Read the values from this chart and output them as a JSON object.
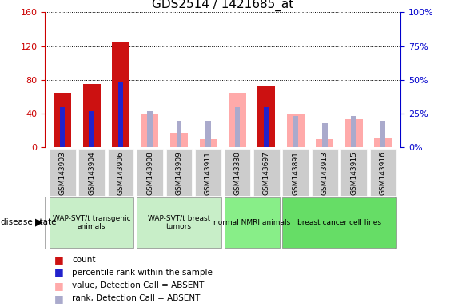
{
  "title": "GDS2514 / 1421685_at",
  "samples": [
    "GSM143903",
    "GSM143904",
    "GSM143906",
    "GSM143908",
    "GSM143909",
    "GSM143911",
    "GSM143330",
    "GSM143697",
    "GSM143891",
    "GSM143913",
    "GSM143915",
    "GSM143916"
  ],
  "count_values": [
    65,
    75,
    125,
    0,
    0,
    0,
    0,
    73,
    0,
    0,
    0,
    0
  ],
  "percentile_values": [
    30,
    27,
    48,
    0,
    0,
    0,
    0,
    30,
    0,
    0,
    0,
    0
  ],
  "absent_value_values": [
    0,
    0,
    0,
    40,
    17,
    10,
    65,
    0,
    40,
    10,
    33,
    12
  ],
  "absent_rank_values": [
    0,
    0,
    0,
    27,
    20,
    20,
    30,
    0,
    23,
    18,
    23,
    20
  ],
  "groups": [
    {
      "label": "WAP-SVT/t transgenic\nanimals",
      "start": 0,
      "end": 2,
      "color": "#c8eec8"
    },
    {
      "label": "WAP-SVT/t breast\ntumors",
      "start": 3,
      "end": 5,
      "color": "#c8eec8"
    },
    {
      "label": "normal NMRI animals",
      "start": 6,
      "end": 7,
      "color": "#88ee88"
    },
    {
      "label": "breast cancer cell lines",
      "start": 8,
      "end": 11,
      "color": "#66dd66"
    }
  ],
  "left_ylim": [
    0,
    160
  ],
  "right_ylim": [
    0,
    100
  ],
  "left_yticks": [
    0,
    40,
    80,
    120,
    160
  ],
  "right_yticks": [
    0,
    25,
    50,
    75,
    100
  ],
  "right_yticklabels": [
    "0%",
    "25%",
    "50%",
    "75%",
    "100%"
  ],
  "bar_width": 0.6,
  "narrow_bar_width": 0.18,
  "count_color": "#cc1111",
  "percentile_color": "#2222cc",
  "absent_value_color": "#ffaaaa",
  "absent_rank_color": "#aaaacc",
  "left_axis_color": "#cc0000",
  "right_axis_color": "#0000cc",
  "grid_color": "#000000",
  "sample_box_color": "#cccccc",
  "legend_data": [
    {
      "color": "#cc1111",
      "label": "count"
    },
    {
      "color": "#2222cc",
      "label": "percentile rank within the sample"
    },
    {
      "color": "#ffaaaa",
      "label": "value, Detection Call = ABSENT"
    },
    {
      "color": "#aaaacc",
      "label": "rank, Detection Call = ABSENT"
    }
  ]
}
